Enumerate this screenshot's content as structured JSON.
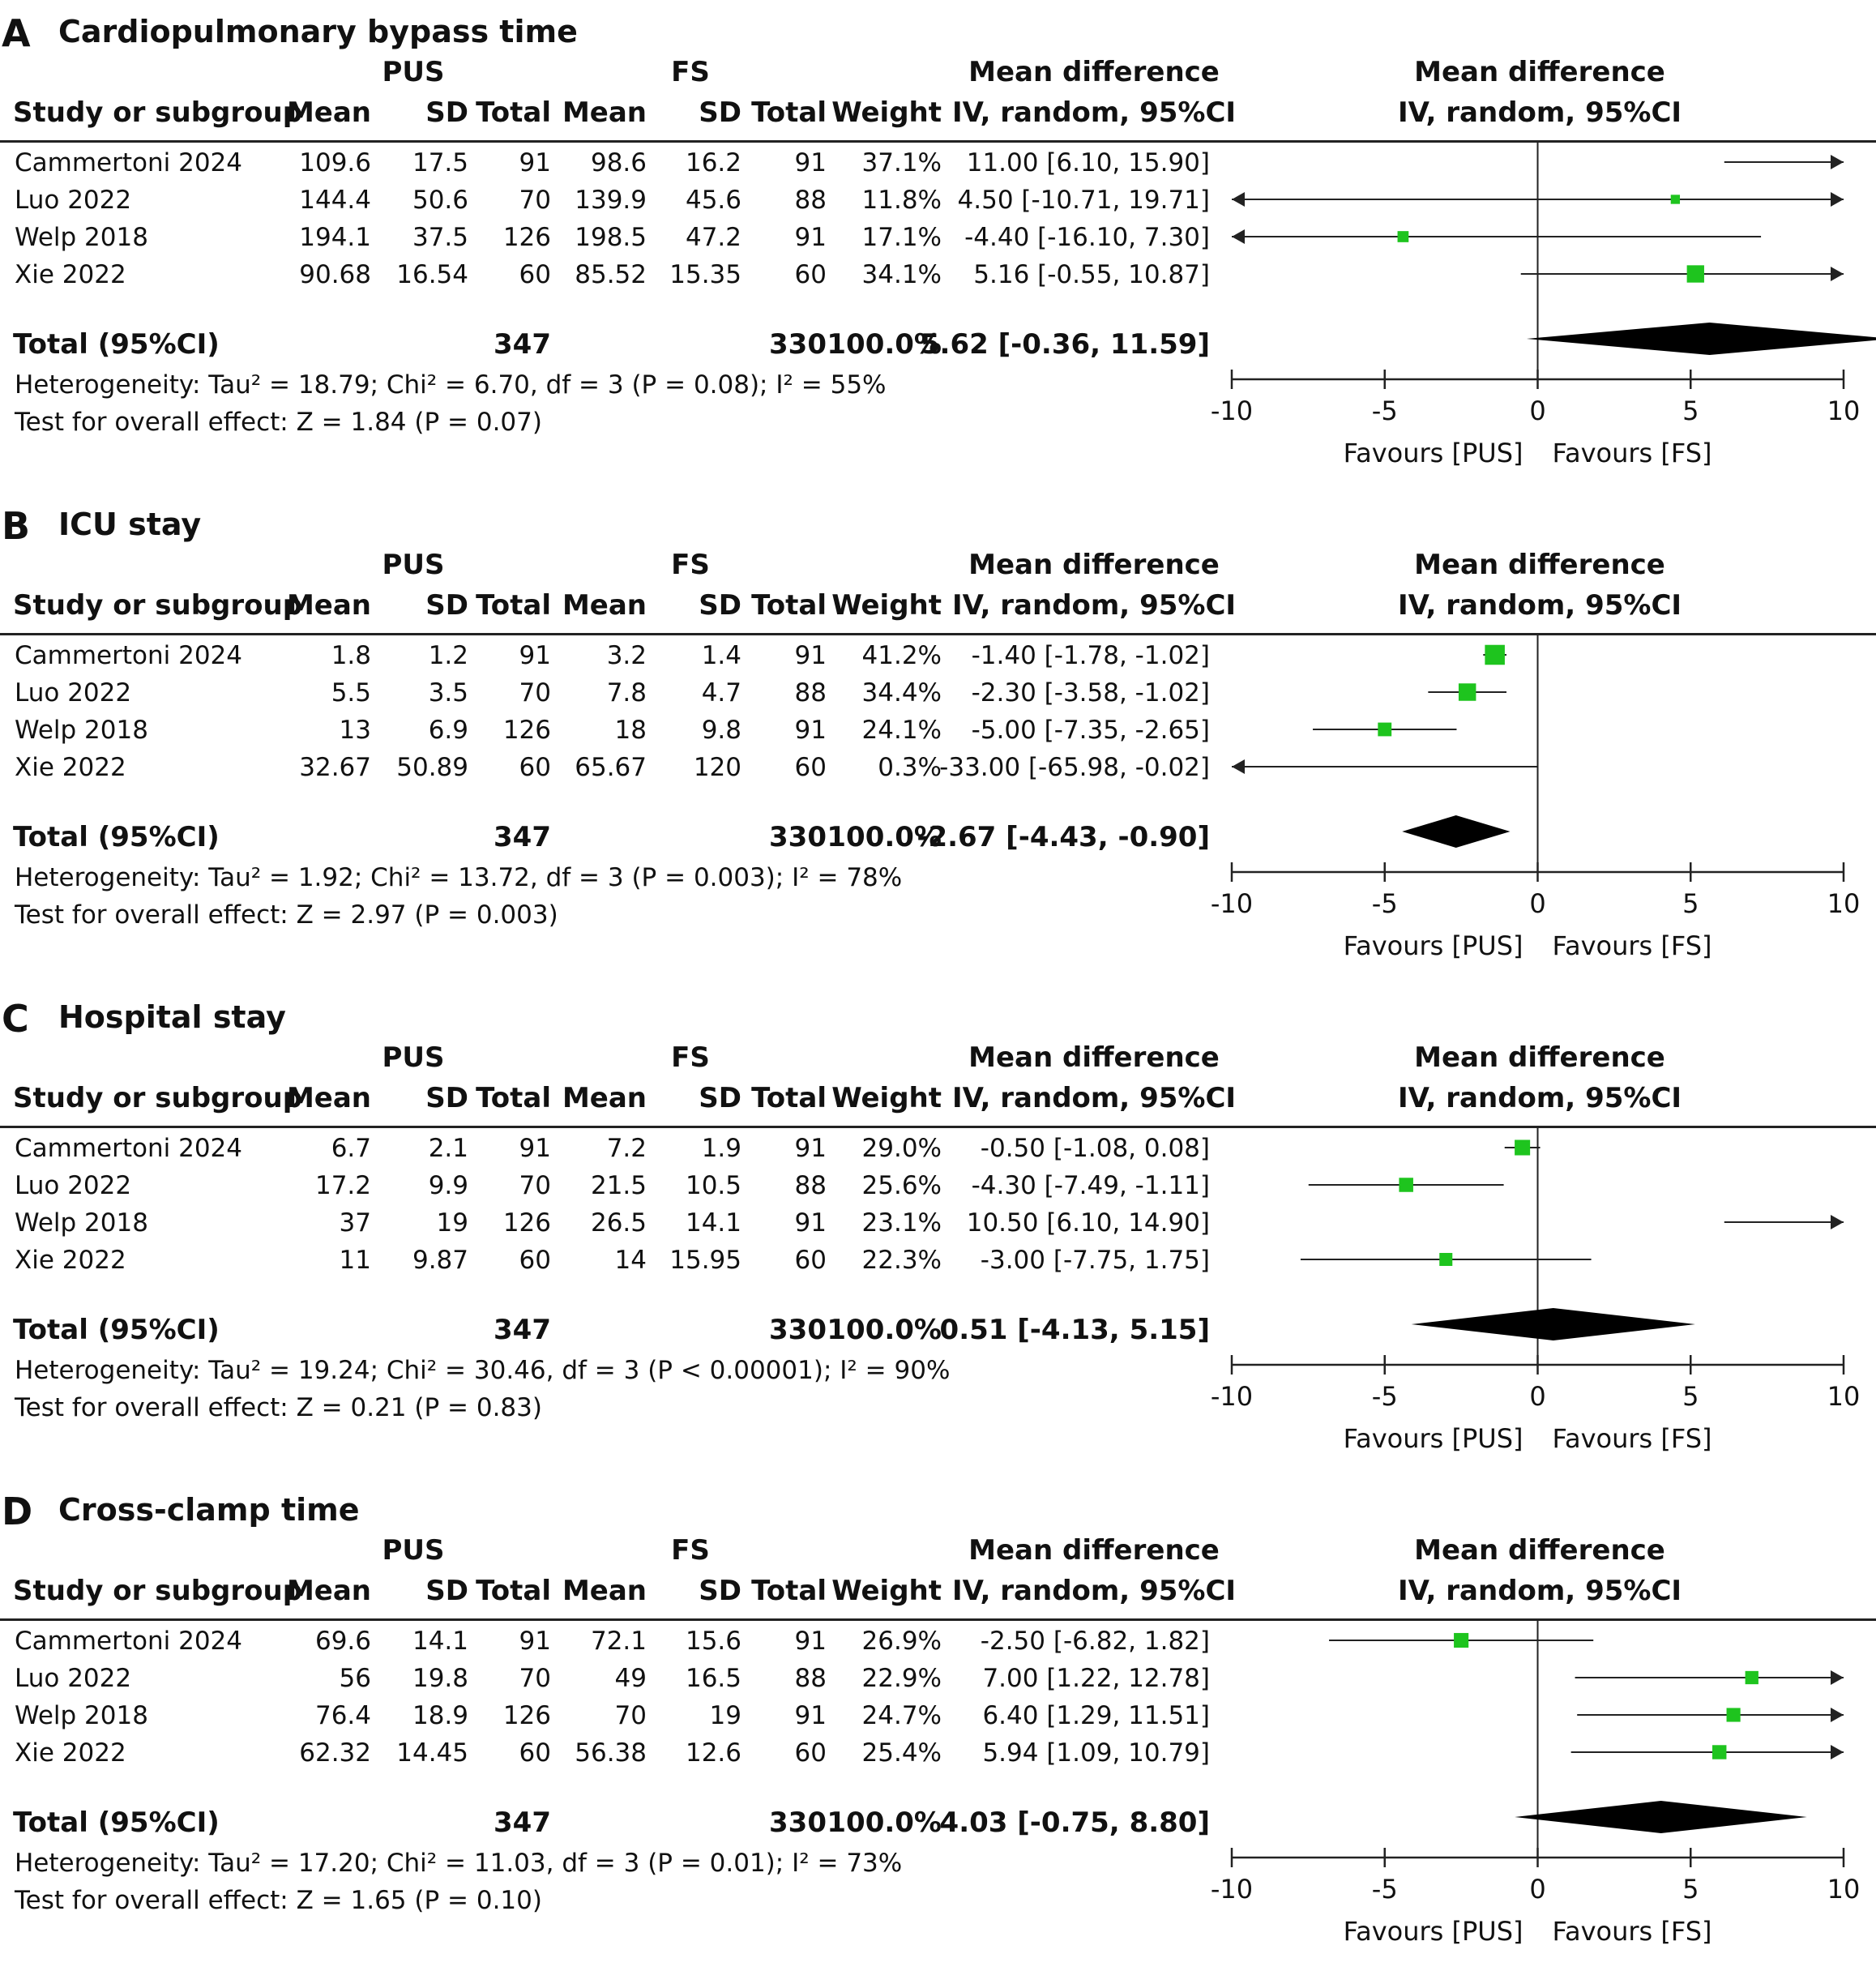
{
  "columns": {
    "study": "Study or subgroup",
    "group1": "PUS",
    "group2": "FS",
    "mean": "Mean",
    "sd": "SD",
    "total": "Total",
    "weight": "Weight",
    "md_top": "Mean difference",
    "md_bottom": "IV, random, 95%CI"
  },
  "plot_labels": {
    "favours_left": "Favours [PUS]",
    "favours_right": "Favours [FS]"
  },
  "panels": [
    {
      "letter": "A",
      "title": "Cardiopulmonary bypass time",
      "studies": [
        {
          "name": "Cammertoni 2024",
          "m1": "109.6",
          "sd1": "17.5",
          "n1": "91",
          "m2": "98.6",
          "sd2": "16.2",
          "n2": "91",
          "weight": "37.1%",
          "ci_text": "11.00 [6.10, 15.90]"
        },
        {
          "name": "Luo 2022",
          "m1": "144.4",
          "sd1": "50.6",
          "n1": "70",
          "m2": "139.9",
          "sd2": "45.6",
          "n2": "88",
          "weight": "11.8%",
          "ci_text": "4.50 [-10.71, 19.71]"
        },
        {
          "name": "Welp 2018",
          "m1": "194.1",
          "sd1": "37.5",
          "n1": "126",
          "m2": "198.5",
          "sd2": "47.2",
          "n2": "91",
          "weight": "17.1%",
          "ci_text": "-4.40 [-16.10, 7.30]"
        },
        {
          "name": "Xie 2022",
          "m1": "90.68",
          "sd1": "16.54",
          "n1": "60",
          "m2": "85.52",
          "sd2": "15.35",
          "n2": "60",
          "weight": "34.1%",
          "ci_text": "5.16 [-0.55, 10.87]"
        }
      ],
      "total": {
        "label": "Total (95%CI)",
        "n1": "347",
        "n2": "330",
        "weight": "100.0%",
        "ci_text": "5.62 [-0.36, 11.59]"
      },
      "heterogeneity": "Heterogeneity: Tau² = 18.79; Chi² = 6.70, df = 3 (P = 0.08); I² = 55%",
      "overall": "Test for overall effect: Z = 1.84 (P = 0.07)"
    },
    {
      "letter": "B",
      "title": "ICU stay",
      "studies": [
        {
          "name": "Cammertoni 2024",
          "m1": "1.8",
          "sd1": "1.2",
          "n1": "91",
          "m2": "3.2",
          "sd2": "1.4",
          "n2": "91",
          "weight": "41.2%",
          "ci_text": "-1.40 [-1.78, -1.02]"
        },
        {
          "name": "Luo 2022",
          "m1": "5.5",
          "sd1": "3.5",
          "n1": "70",
          "m2": "7.8",
          "sd2": "4.7",
          "n2": "88",
          "weight": "34.4%",
          "ci_text": "-2.30 [-3.58, -1.02]"
        },
        {
          "name": "Welp 2018",
          "m1": "13",
          "sd1": "6.9",
          "n1": "126",
          "m2": "18",
          "sd2": "9.8",
          "n2": "91",
          "weight": "24.1%",
          "ci_text": "-5.00 [-7.35, -2.65]"
        },
        {
          "name": "Xie 2022",
          "m1": "32.67",
          "sd1": "50.89",
          "n1": "60",
          "m2": "65.67",
          "sd2": "120",
          "n2": "60",
          "weight": "0.3%",
          "ci_text": "-33.00 [-65.98, -0.02]"
        }
      ],
      "total": {
        "label": "Total (95%CI)",
        "n1": "347",
        "n2": "330",
        "weight": "100.0%",
        "ci_text": "-2.67 [-4.43, -0.90]"
      },
      "heterogeneity": "Heterogeneity: Tau² = 1.92; Chi² = 13.72, df = 3 (P = 0.003); I² = 78%",
      "overall": "Test for overall effect: Z = 2.97 (P = 0.003)"
    },
    {
      "letter": "C",
      "title": "Hospital stay",
      "studies": [
        {
          "name": "Cammertoni 2024",
          "m1": "6.7",
          "sd1": "2.1",
          "n1": "91",
          "m2": "7.2",
          "sd2": "1.9",
          "n2": "91",
          "weight": "29.0%",
          "ci_text": "-0.50 [-1.08, 0.08]"
        },
        {
          "name": "Luo 2022",
          "m1": "17.2",
          "sd1": "9.9",
          "n1": "70",
          "m2": "21.5",
          "sd2": "10.5",
          "n2": "88",
          "weight": "25.6%",
          "ci_text": "-4.30 [-7.49, -1.11]"
        },
        {
          "name": "Welp 2018",
          "m1": "37",
          "sd1": "19",
          "n1": "126",
          "m2": "26.5",
          "sd2": "14.1",
          "n2": "91",
          "weight": "23.1%",
          "ci_text": "10.50 [6.10, 14.90]"
        },
        {
          "name": "Xie 2022",
          "m1": "11",
          "sd1": "9.87",
          "n1": "60",
          "m2": "14",
          "sd2": "15.95",
          "n2": "60",
          "weight": "22.3%",
          "ci_text": "-3.00 [-7.75, 1.75]"
        }
      ],
      "total": {
        "label": "Total (95%CI)",
        "n1": "347",
        "n2": "330",
        "weight": "100.0%",
        "ci_text": "0.51 [-4.13, 5.15]"
      },
      "heterogeneity": "Heterogeneity: Tau² = 19.24; Chi² = 30.46, df = 3 (P < 0.00001); I² = 90%",
      "overall": "Test for overall effect: Z = 0.21 (P = 0.83)"
    },
    {
      "letter": "D",
      "title": "Cross-clamp time",
      "studies": [
        {
          "name": "Cammertoni 2024",
          "m1": "69.6",
          "sd1": "14.1",
          "n1": "91",
          "m2": "72.1",
          "sd2": "15.6",
          "n2": "91",
          "weight": "26.9%",
          "ci_text": "-2.50 [-6.82, 1.82]"
        },
        {
          "name": "Luo 2022",
          "m1": "56",
          "sd1": "19.8",
          "n1": "70",
          "m2": "49",
          "sd2": "16.5",
          "n2": "88",
          "weight": "22.9%",
          "ci_text": "7.00 [1.22, 12.78]"
        },
        {
          "name": "Welp 2018",
          "m1": "76.4",
          "sd1": "18.9",
          "n1": "126",
          "m2": "70",
          "sd2": "19",
          "n2": "91",
          "weight": "24.7%",
          "ci_text": "6.40 [1.29, 11.51]"
        },
        {
          "name": "Xie 2022",
          "m1": "62.32",
          "sd1": "14.45",
          "n1": "60",
          "m2": "56.38",
          "sd2": "12.6",
          "n2": "60",
          "weight": "25.4%",
          "ci_text": "5.94 [1.09, 10.79]"
        }
      ],
      "total": {
        "label": "Total (95%CI)",
        "n1": "347",
        "n2": "330",
        "weight": "100.0%",
        "ci_text": "4.03 [-0.75, 8.80]"
      },
      "heterogeneity": "Heterogeneity: Tau² = 17.20; Chi² = 11.03, df = 3 (P = 0.01); I² = 73%",
      "overall": "Test for overall effect: Z = 1.65 (P = 0.10)"
    }
  ],
  "chart_data": [
    {
      "type": "scatter",
      "subtype": "forest-plot",
      "title": "Cardiopulmonary bypass time",
      "xlim": [
        -10,
        10
      ],
      "xticks": [
        -10,
        -5,
        0,
        5,
        10
      ],
      "studies": [
        {
          "name": "Cammertoni 2024",
          "md": 11.0,
          "lo": 6.1,
          "hi": 15.9,
          "weight": 37.1
        },
        {
          "name": "Luo 2022",
          "md": 4.5,
          "lo": -10.71,
          "hi": 19.71,
          "weight": 11.8
        },
        {
          "name": "Welp 2018",
          "md": -4.4,
          "lo": -16.1,
          "hi": 7.3,
          "weight": 17.1
        },
        {
          "name": "Xie 2022",
          "md": 5.16,
          "lo": -0.55,
          "hi": 10.87,
          "weight": 34.1
        }
      ],
      "pooled": {
        "md": 5.62,
        "lo": -0.36,
        "hi": 11.59
      }
    },
    {
      "type": "scatter",
      "subtype": "forest-plot",
      "title": "ICU stay",
      "xlim": [
        -10,
        10
      ],
      "xticks": [
        -10,
        -5,
        0,
        5,
        10
      ],
      "studies": [
        {
          "name": "Cammertoni 2024",
          "md": -1.4,
          "lo": -1.78,
          "hi": -1.02,
          "weight": 41.2
        },
        {
          "name": "Luo 2022",
          "md": -2.3,
          "lo": -3.58,
          "hi": -1.02,
          "weight": 34.4
        },
        {
          "name": "Welp 2018",
          "md": -5.0,
          "lo": -7.35,
          "hi": -2.65,
          "weight": 24.1
        },
        {
          "name": "Xie 2022",
          "md": -33.0,
          "lo": -65.98,
          "hi": -0.02,
          "weight": 0.3
        }
      ],
      "pooled": {
        "md": -2.67,
        "lo": -4.43,
        "hi": -0.9
      }
    },
    {
      "type": "scatter",
      "subtype": "forest-plot",
      "title": "Hospital stay",
      "xlim": [
        -10,
        10
      ],
      "xticks": [
        -10,
        -5,
        0,
        5,
        10
      ],
      "studies": [
        {
          "name": "Cammertoni 2024",
          "md": -0.5,
          "lo": -1.08,
          "hi": 0.08,
          "weight": 29.0
        },
        {
          "name": "Luo 2022",
          "md": -4.3,
          "lo": -7.49,
          "hi": -1.11,
          "weight": 25.6
        },
        {
          "name": "Welp 2018",
          "md": 10.5,
          "lo": 6.1,
          "hi": 14.9,
          "weight": 23.1
        },
        {
          "name": "Xie 2022",
          "md": -3.0,
          "lo": -7.75,
          "hi": 1.75,
          "weight": 22.3
        }
      ],
      "pooled": {
        "md": 0.51,
        "lo": -4.13,
        "hi": 5.15
      }
    },
    {
      "type": "scatter",
      "subtype": "forest-plot",
      "title": "Cross-clamp time",
      "xlim": [
        -10,
        10
      ],
      "xticks": [
        -10,
        -5,
        0,
        5,
        10
      ],
      "studies": [
        {
          "name": "Cammertoni 2024",
          "md": -2.5,
          "lo": -6.82,
          "hi": 1.82,
          "weight": 26.9
        },
        {
          "name": "Luo 2022",
          "md": 7.0,
          "lo": 1.22,
          "hi": 12.78,
          "weight": 22.9
        },
        {
          "name": "Welp 2018",
          "md": 6.4,
          "lo": 1.29,
          "hi": 11.51,
          "weight": 24.7
        },
        {
          "name": "Xie 2022",
          "md": 5.94,
          "lo": 1.09,
          "hi": 10.79,
          "weight": 25.4
        }
      ],
      "pooled": {
        "md": 4.03,
        "lo": -0.75,
        "hi": 8.8
      }
    }
  ],
  "colors": {
    "marker": "#1ec41e",
    "diamond": "#000000",
    "line": "#222222"
  }
}
